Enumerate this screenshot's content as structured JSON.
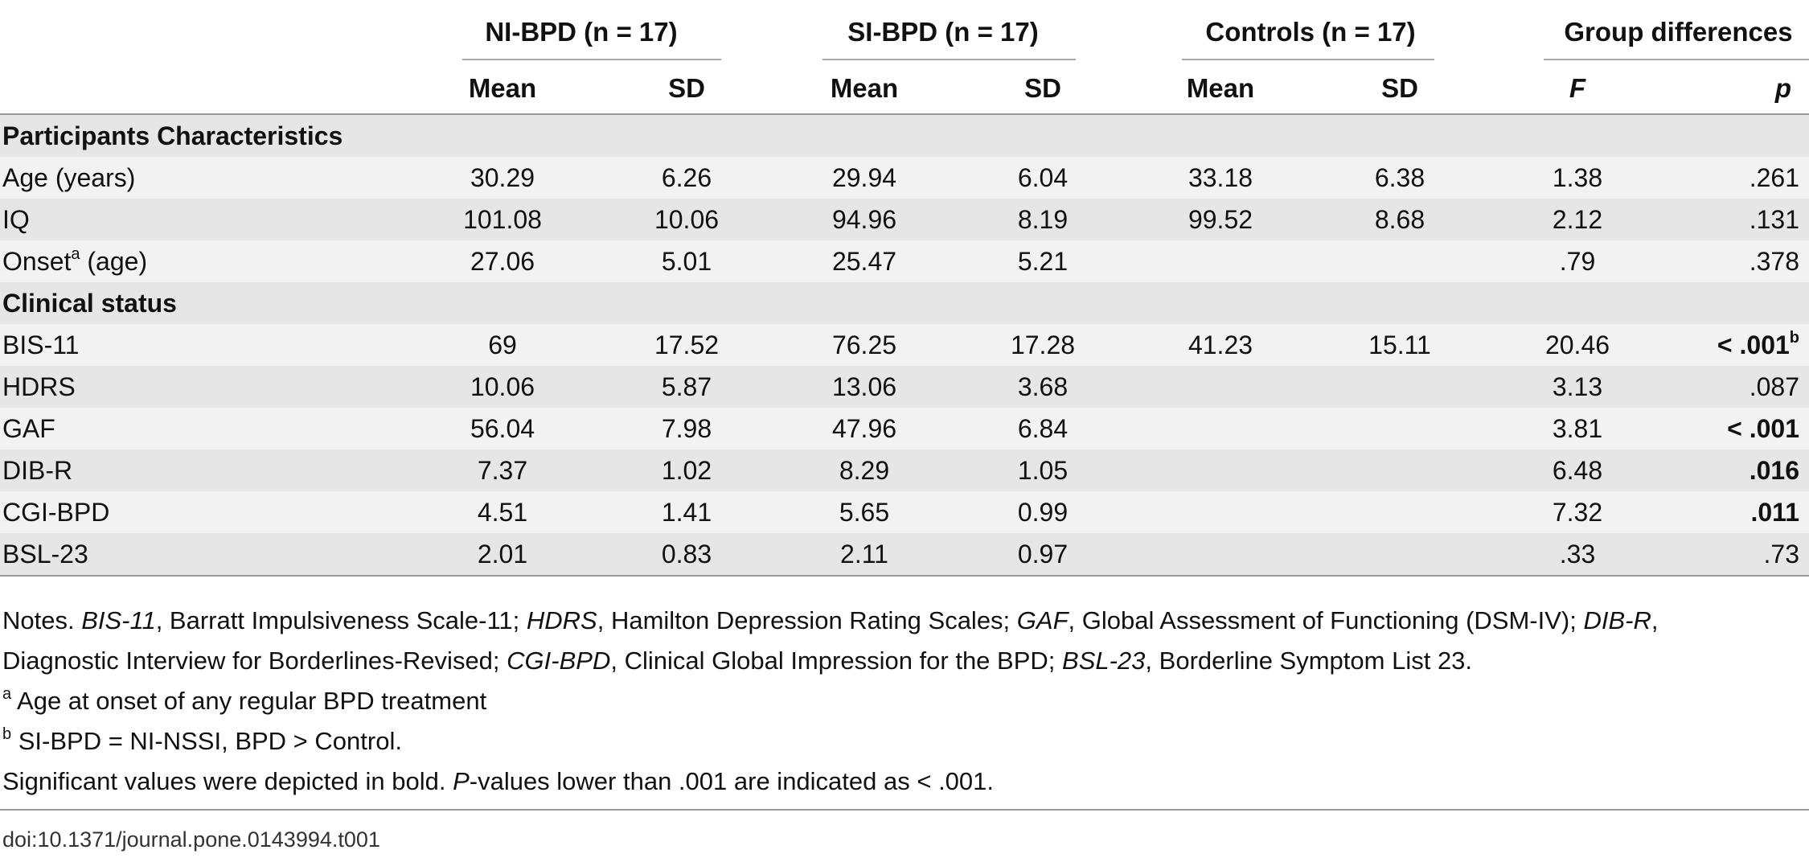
{
  "headers": {
    "groups": [
      "NI-BPD (n = 17)",
      "SI-BPD (n = 17)",
      "Controls (n = 17)",
      "Group differences"
    ],
    "subheaders": [
      "Mean",
      "SD",
      "Mean",
      "SD",
      "Mean",
      "SD",
      "F",
      "p"
    ]
  },
  "sections": [
    {
      "title": "Participants Characteristics"
    },
    {
      "title": "Clinical status"
    }
  ],
  "rows": [
    {
      "label": "Age (years)",
      "label_sup": "",
      "label_suffix": "",
      "cells": [
        "30.29",
        "6.26",
        "29.94",
        "6.04",
        "33.18",
        "6.38",
        "1.38"
      ],
      "p": ".261",
      "p_sup": "",
      "p_bold": false
    },
    {
      "label": "IQ",
      "label_sup": "",
      "label_suffix": "",
      "cells": [
        "101.08",
        "10.06",
        "94.96",
        "8.19",
        "99.52",
        "8.68",
        "2.12"
      ],
      "p": ".131",
      "p_sup": "",
      "p_bold": false
    },
    {
      "label": "Onset",
      "label_sup": "a",
      "label_suffix": " (age)",
      "cells": [
        "27.06",
        "5.01",
        "25.47",
        "5.21",
        "",
        "",
        ".79"
      ],
      "p": ".378",
      "p_sup": "",
      "p_bold": false
    },
    {
      "label": "BIS-11",
      "label_sup": "",
      "label_suffix": "",
      "cells": [
        "69",
        "17.52",
        "76.25",
        "17.28",
        "41.23",
        "15.11",
        "20.46"
      ],
      "p": "< .001",
      "p_sup": "b",
      "p_bold": true
    },
    {
      "label": "HDRS",
      "label_sup": "",
      "label_suffix": "",
      "cells": [
        "10.06",
        "5.87",
        "13.06",
        "3.68",
        "",
        "",
        "3.13"
      ],
      "p": ".087",
      "p_sup": "",
      "p_bold": false
    },
    {
      "label": "GAF",
      "label_sup": "",
      "label_suffix": "",
      "cells": [
        "56.04",
        "7.98",
        "47.96",
        "6.84",
        "",
        "",
        "3.81"
      ],
      "p": "< .001",
      "p_sup": "",
      "p_bold": true
    },
    {
      "label": "DIB-R",
      "label_sup": "",
      "label_suffix": "",
      "cells": [
        "7.37",
        "1.02",
        "8.29",
        "1.05",
        "",
        "",
        "6.48"
      ],
      "p": ".016",
      "p_sup": "",
      "p_bold": true
    },
    {
      "label": "CGI-BPD",
      "label_sup": "",
      "label_suffix": "",
      "cells": [
        "4.51",
        "1.41",
        "5.65",
        "0.99",
        "",
        "",
        "7.32"
      ],
      "p": ".011",
      "p_sup": "",
      "p_bold": true
    },
    {
      "label": "BSL-23",
      "label_sup": "",
      "label_suffix": "",
      "cells": [
        "2.01",
        "0.83",
        "2.11",
        "0.97",
        "",
        "",
        ".33"
      ],
      "p": ".73",
      "p_sup": "",
      "p_bold": false
    }
  ],
  "notes": {
    "line1": {
      "prefix": "Notes. ",
      "items": [
        {
          "abbr": "BIS-11",
          "text": ", Barratt Impulsiveness Scale-11; "
        },
        {
          "abbr": "HDRS",
          "text": ", Hamilton Depression Rating Scales; "
        },
        {
          "abbr": "GAF",
          "text": ", Global Assessment of Functioning (DSM-IV); "
        },
        {
          "abbr": "DIB-R",
          "text": ","
        }
      ]
    },
    "line2": {
      "items": [
        {
          "plain": "Diagnostic Interview for Borderlines-Revised; "
        },
        {
          "abbr": "CGI-BPD",
          "text": ", Clinical Global Impression for the BPD; "
        },
        {
          "abbr": "BSL-23",
          "text": ", Borderline Symptom List 23."
        }
      ]
    },
    "footnote_a": {
      "mark": "a",
      "text": " Age at onset of any regular BPD treatment"
    },
    "footnote_b": {
      "mark": "b",
      "text": " SI-BPD = NI-NSSI, BPD > Control."
    },
    "significance": {
      "before": "Significant values were depicted in bold. ",
      "italic": "P",
      "after": "-values lower than .001 are indicated as < .001."
    }
  },
  "doi": "doi:10.1371/journal.pone.0143994.t001"
}
